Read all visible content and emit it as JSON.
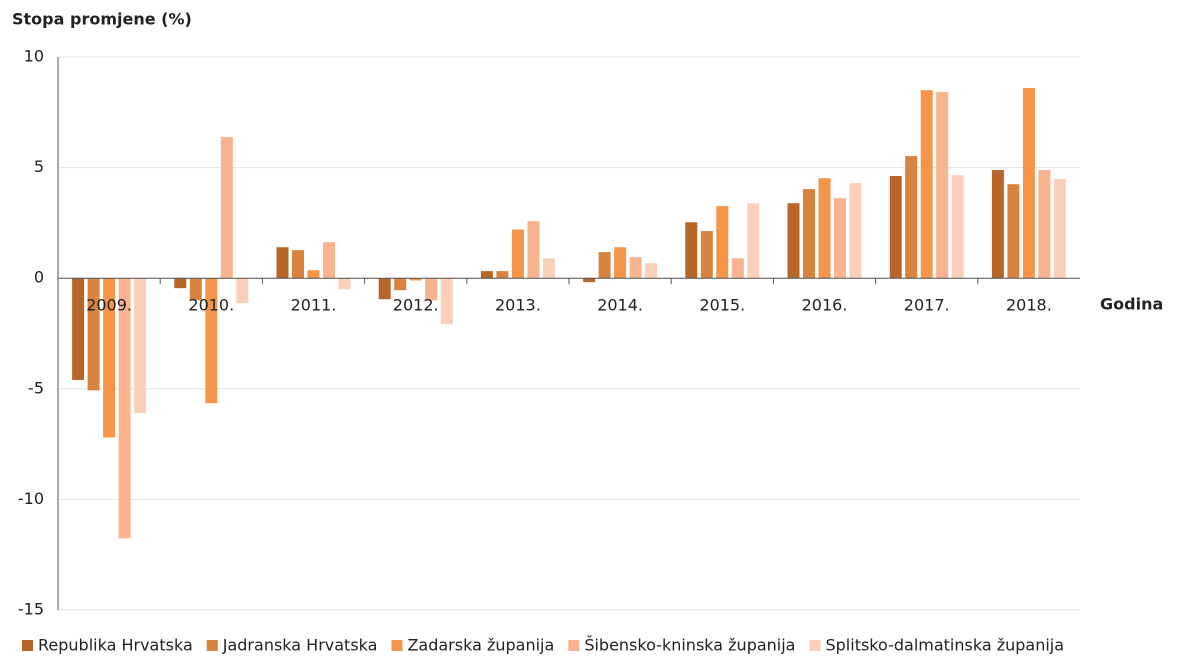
{
  "chart_data": {
    "type": "bar",
    "title": "Stopa promjene (%)",
    "x_label": "Godina",
    "categories": [
      "2009.",
      "2010.",
      "2011.",
      "2012.",
      "2013.",
      "2014.",
      "2015.",
      "2016.",
      "2017.",
      "2018."
    ],
    "series": [
      {
        "name": "Republika Hrvatska",
        "color": "#b8652a",
        "values": [
          -4.6,
          -0.45,
          1.4,
          -0.95,
          0.32,
          -0.18,
          2.53,
          3.39,
          4.62,
          4.89
        ]
      },
      {
        "name": "Jadranska Hrvatska",
        "color": "#d9843e",
        "values": [
          -5.07,
          -1.0,
          1.27,
          -0.54,
          0.32,
          1.18,
          2.13,
          4.03,
          5.52,
          4.25
        ]
      },
      {
        "name": "Zadarska županija",
        "color": "#f4954a",
        "values": [
          -7.2,
          -5.65,
          0.36,
          -0.1,
          2.2,
          1.4,
          3.26,
          4.52,
          8.5,
          8.6
        ]
      },
      {
        "name": "Šibensko-kninska županija",
        "color": "#f9b48f",
        "values": [
          -11.76,
          6.38,
          1.63,
          -1.0,
          2.58,
          0.95,
          0.9,
          3.62,
          8.42,
          4.89
        ]
      },
      {
        "name": "Splitsko-dalmatinska županija",
        "color": "#fcd0b8",
        "values": [
          -6.1,
          -1.13,
          -0.5,
          -2.08,
          0.9,
          0.68,
          3.39,
          4.3,
          4.66,
          4.48
        ]
      }
    ],
    "ylim": [
      -15,
      10
    ],
    "yticks": [
      -15,
      -10,
      -5,
      0,
      5,
      10
    ],
    "grid": true,
    "legend": "bottom"
  }
}
